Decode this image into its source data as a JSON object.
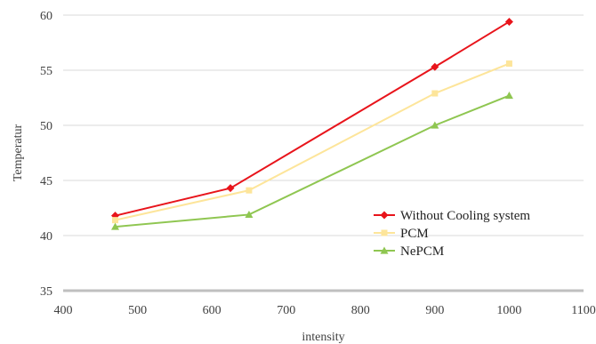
{
  "chart_data": {
    "type": "line",
    "title": "",
    "xlabel": "intensity",
    "ylabel": "Temperatur",
    "xlim": [
      400,
      1100
    ],
    "ylim": [
      35,
      60
    ],
    "xticks": [
      400,
      500,
      600,
      700,
      800,
      900,
      1000,
      1100
    ],
    "yticks": [
      35,
      40,
      45,
      50,
      55,
      60
    ],
    "grid": {
      "horizontal": true,
      "vertical": false
    },
    "legend_position": "bottom-right",
    "series": [
      {
        "name": "Without Cooling system",
        "color": "#e8141b",
        "marker": "diamond",
        "x": [
          470,
          625,
          900,
          1000
        ],
        "y": [
          41.8,
          44.3,
          55.3,
          59.4
        ]
      },
      {
        "name": "PCM",
        "color": "#fde59a",
        "marker": "square",
        "x": [
          470,
          650,
          900,
          1000
        ],
        "y": [
          41.4,
          44.1,
          52.9,
          55.6
        ]
      },
      {
        "name": "NePCM",
        "color": "#8fc651",
        "marker": "triangle",
        "x": [
          470,
          650,
          900,
          1000
        ],
        "y": [
          40.8,
          41.9,
          50.0,
          52.7
        ]
      }
    ]
  }
}
